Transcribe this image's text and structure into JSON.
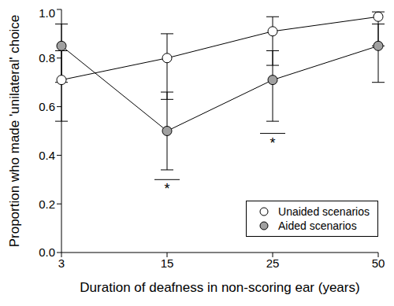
{
  "chart_data": {
    "type": "line",
    "x_label": "Duration of deafness in non-scoring ear (years)",
    "y_label": "Proportion who made 'unilateral' choice",
    "categories": [
      "3",
      "15",
      "25",
      "50"
    ],
    "series": [
      {
        "name": "Unaided scenarios",
        "color": "#ffffff",
        "marker": "circle",
        "values": [
          0.71,
          0.8,
          0.91,
          0.97
        ],
        "lower": [
          0.54,
          0.63,
          0.77,
          0.85
        ],
        "upper": [
          0.83,
          0.9,
          0.97,
          0.99
        ]
      },
      {
        "name": "Aided scenarios",
        "color": "#a0a0a0",
        "marker": "circle",
        "values": [
          0.85,
          0.5,
          0.71,
          0.85
        ],
        "lower": [
          0.7,
          0.34,
          0.54,
          0.7
        ],
        "upper": [
          0.94,
          0.66,
          0.83,
          0.94
        ]
      }
    ],
    "ylim": [
      0,
      1
    ],
    "yticks": [
      {
        "value": 0,
        "label": "0.0"
      },
      0.2,
      0.4,
      0.6,
      0.8,
      {
        "value": 1,
        "label": "1.0"
      }
    ],
    "legend": "lower right",
    "annotations": [
      {
        "x": "15",
        "y": 0.3,
        "text": "*"
      },
      {
        "x": "25",
        "y": 0.49,
        "text": "*"
      }
    ]
  }
}
